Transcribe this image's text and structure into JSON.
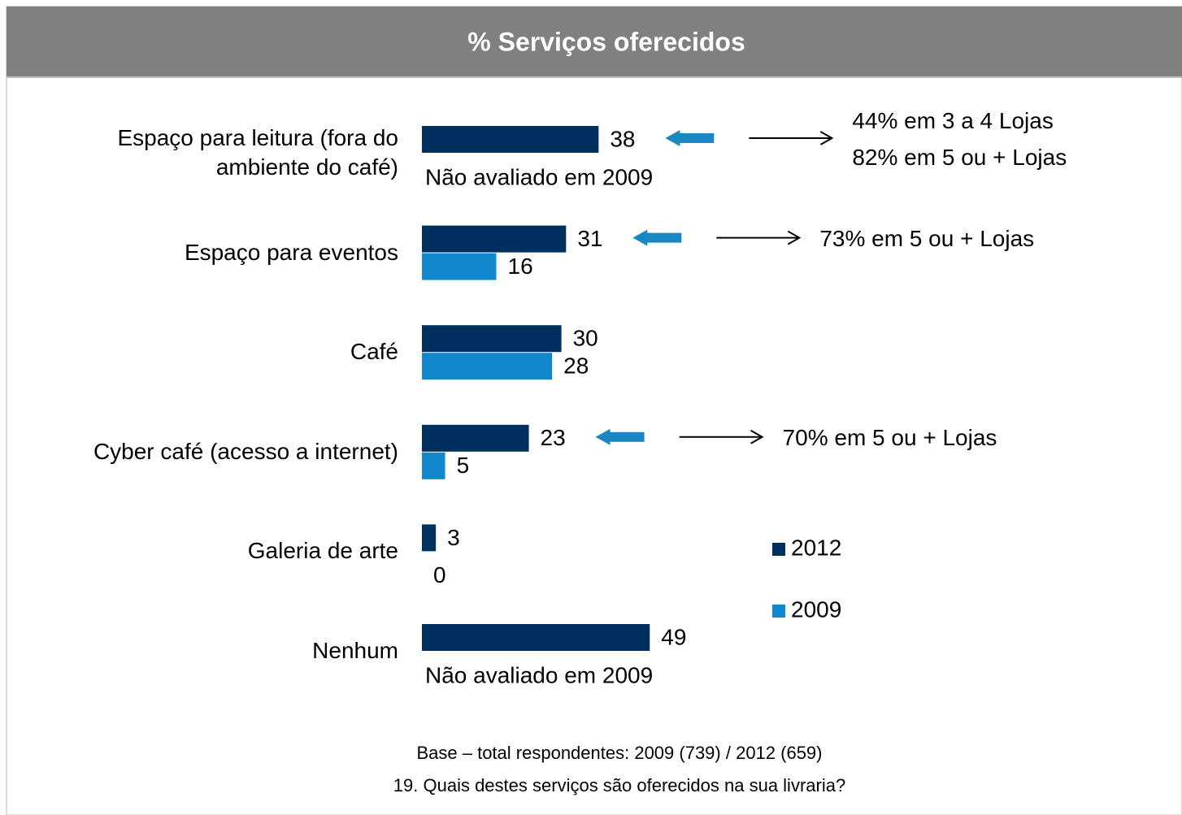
{
  "chart_data": {
    "type": "bar",
    "orientation": "horizontal",
    "title": "% Serviços oferecidos",
    "categories": [
      "Espaço para leitura (fora do ambiente do café)",
      "Espaço para eventos",
      "Café",
      "Cyber café (acesso a internet)",
      "Galeria de arte",
      "Nenhum"
    ],
    "series": [
      {
        "name": "2012",
        "color": "#00305f",
        "values": [
          38,
          31,
          30,
          23,
          3,
          49
        ]
      },
      {
        "name": "2009",
        "color": "#1288cc",
        "values": [
          null,
          16,
          28,
          5,
          0,
          null
        ]
      }
    ],
    "notes": [
      "Não avaliado em 2009",
      null,
      null,
      null,
      null,
      "Não avaliado em 2009"
    ],
    "callouts": [
      [
        "44% em 3 a 4 Lojas",
        "82% em 5 ou + Lojas"
      ],
      [
        "73% em 5 ou + Lojas"
      ],
      null,
      [
        "70% em 5 ou + Lojas"
      ],
      null,
      null
    ],
    "footnotes": [
      "Base – total respondentes: 2009 (739) / 2012 (659)",
      "19. Quais destes serviços são oferecidos na sua livraria?"
    ]
  }
}
